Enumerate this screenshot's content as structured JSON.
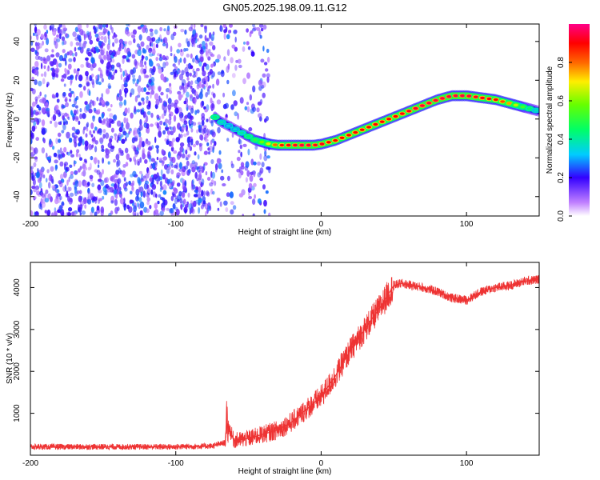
{
  "title": "GN05.2025.198.09.11.G12",
  "chart_data": [
    {
      "type": "heatmap",
      "xlabel": "Height of straight line (km)",
      "ylabel": "Frequency (Hz)",
      "xlim": [
        -200,
        150
      ],
      "ylim": [
        -50,
        49
      ],
      "xticks": [
        -200,
        -100,
        0,
        100
      ],
      "yticks": [
        -40,
        -20,
        0,
        20,
        40
      ],
      "colorbar": {
        "label": "Normalized spectral amplitude",
        "range": [
          0,
          1
        ],
        "ticks": [
          0,
          0.2,
          0.4,
          0.6,
          0.8
        ]
      },
      "noise_region_x": [
        -200,
        -35
      ],
      "ridge": {
        "x": [
          -73,
          -70,
          -65,
          -60,
          -55,
          -50,
          -45,
          -40,
          -35,
          -30,
          -25,
          -20,
          -15,
          -10,
          -5,
          0,
          5,
          10,
          20,
          30,
          40,
          50,
          60,
          70,
          80,
          90,
          100,
          110,
          120,
          130,
          140,
          150
        ],
        "frequency": [
          1,
          -1,
          -3,
          -5,
          -7,
          -9,
          -11,
          -12,
          -13,
          -13.5,
          -13.5,
          -13.5,
          -13.5,
          -13.5,
          -13.5,
          -13,
          -12,
          -11,
          -8,
          -5,
          -2,
          1,
          4,
          7,
          10,
          12,
          12,
          11,
          10,
          8,
          6,
          4
        ],
        "amplitude": [
          0.45,
          0.4,
          0.35,
          0.35,
          0.4,
          0.45,
          0.5,
          0.6,
          0.7,
          0.85,
          0.9,
          0.92,
          0.95,
          0.95,
          0.93,
          0.92,
          0.9,
          0.9,
          0.9,
          0.9,
          0.9,
          0.9,
          0.92,
          0.95,
          0.95,
          0.95,
          0.95,
          0.92,
          0.9,
          0.75,
          0.5,
          0.35
        ]
      }
    },
    {
      "type": "line",
      "xlabel": "Height of straight line (km)",
      "ylabel": "SNR (10 * v/v)",
      "xlim": [
        -200,
        150
      ],
      "ylim": [
        0,
        4600
      ],
      "xticks": [
        -200,
        -100,
        0,
        100
      ],
      "yticks": [
        1000,
        2000,
        3000,
        4000
      ],
      "series": [
        {
          "color": "#ee3333",
          "x": [
            -200,
            -150,
            -100,
            -75,
            -66,
            -65,
            -60,
            -50,
            -40,
            -30,
            -20,
            -10,
            0,
            10,
            20,
            30,
            40,
            50,
            55,
            70,
            80,
            90,
            100,
            110,
            120,
            130,
            140,
            150
          ],
          "y": [
            200,
            200,
            200,
            220,
            300,
            800,
            350,
            400,
            500,
            600,
            800,
            1100,
            1400,
            1900,
            2500,
            3000,
            3500,
            4050,
            4100,
            4000,
            3900,
            3750,
            3700,
            3900,
            4000,
            4050,
            4150,
            4200
          ]
        }
      ]
    }
  ]
}
